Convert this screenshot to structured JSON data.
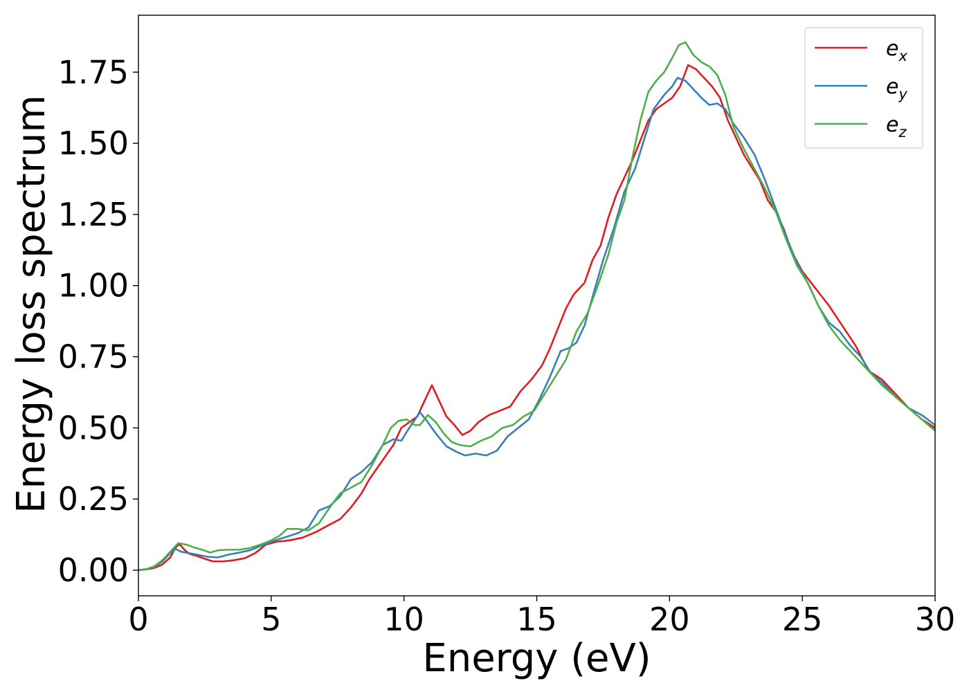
{
  "chart_data": {
    "type": "line",
    "xlabel": "Energy (eV)",
    "ylabel": "Energy loss spectrum",
    "xlim": [
      0,
      30
    ],
    "ylim": [
      -0.09,
      1.95
    ],
    "xticks": [
      0,
      5,
      10,
      15,
      20,
      25,
      30
    ],
    "xtick_labels": [
      "0",
      "5",
      "10",
      "15",
      "20",
      "25",
      "30"
    ],
    "yticks": [
      0.0,
      0.25,
      0.5,
      0.75,
      1.0,
      1.25,
      1.5,
      1.75
    ],
    "ytick_labels": [
      "0.00",
      "0.25",
      "0.50",
      "0.75",
      "1.00",
      "1.25",
      "1.50",
      "1.75"
    ],
    "grid": false,
    "legend_position": "top-right",
    "series": [
      {
        "name": "e",
        "subscript": "x",
        "color": "#e41a1c",
        "points": [
          [
            0,
            0
          ],
          [
            0.3,
            0.003
          ],
          [
            0.6,
            0.008
          ],
          [
            0.9,
            0.02
          ],
          [
            1.2,
            0.045
          ],
          [
            1.4,
            0.08
          ],
          [
            1.55,
            0.092
          ],
          [
            1.7,
            0.075
          ],
          [
            1.9,
            0.058
          ],
          [
            2.2,
            0.05
          ],
          [
            2.5,
            0.04
          ],
          [
            2.8,
            0.031
          ],
          [
            3.2,
            0.031
          ],
          [
            3.6,
            0.035
          ],
          [
            4.0,
            0.042
          ],
          [
            4.4,
            0.06
          ],
          [
            4.8,
            0.09
          ],
          [
            5.2,
            0.1
          ],
          [
            5.7,
            0.105
          ],
          [
            6.2,
            0.115
          ],
          [
            6.7,
            0.135
          ],
          [
            7.2,
            0.16
          ],
          [
            7.6,
            0.18
          ],
          [
            8.0,
            0.22
          ],
          [
            8.4,
            0.27
          ],
          [
            8.7,
            0.32
          ],
          [
            9.0,
            0.36
          ],
          [
            9.3,
            0.4
          ],
          [
            9.6,
            0.44
          ],
          [
            9.9,
            0.5
          ],
          [
            10.2,
            0.52
          ],
          [
            10.5,
            0.54
          ],
          [
            10.8,
            0.6
          ],
          [
            11.05,
            0.65
          ],
          [
            11.3,
            0.6
          ],
          [
            11.6,
            0.54
          ],
          [
            11.9,
            0.51
          ],
          [
            12.2,
            0.475
          ],
          [
            12.5,
            0.49
          ],
          [
            12.8,
            0.52
          ],
          [
            13.2,
            0.545
          ],
          [
            13.6,
            0.56
          ],
          [
            14.0,
            0.575
          ],
          [
            14.4,
            0.63
          ],
          [
            14.8,
            0.67
          ],
          [
            15.2,
            0.72
          ],
          [
            15.5,
            0.78
          ],
          [
            15.8,
            0.85
          ],
          [
            16.1,
            0.92
          ],
          [
            16.4,
            0.97
          ],
          [
            16.8,
            1.01
          ],
          [
            17.1,
            1.09
          ],
          [
            17.4,
            1.14
          ],
          [
            17.7,
            1.24
          ],
          [
            18.0,
            1.32
          ],
          [
            18.3,
            1.38
          ],
          [
            18.6,
            1.44
          ],
          [
            18.9,
            1.51
          ],
          [
            19.2,
            1.58
          ],
          [
            19.5,
            1.62
          ],
          [
            19.8,
            1.64
          ],
          [
            20.1,
            1.66
          ],
          [
            20.4,
            1.7
          ],
          [
            20.7,
            1.775
          ],
          [
            21.0,
            1.76
          ],
          [
            21.3,
            1.73
          ],
          [
            21.6,
            1.7
          ],
          [
            21.9,
            1.66
          ],
          [
            22.2,
            1.58
          ],
          [
            22.5,
            1.52
          ],
          [
            22.8,
            1.46
          ],
          [
            23.1,
            1.415
          ],
          [
            23.4,
            1.37
          ],
          [
            23.7,
            1.3
          ],
          [
            24.0,
            1.26
          ],
          [
            24.3,
            1.2
          ],
          [
            24.6,
            1.12
          ],
          [
            25.0,
            1.05
          ],
          [
            25.5,
            0.99
          ],
          [
            26.0,
            0.93
          ],
          [
            26.5,
            0.86
          ],
          [
            27.0,
            0.79
          ],
          [
            27.5,
            0.7
          ],
          [
            28.0,
            0.67
          ],
          [
            28.5,
            0.62
          ],
          [
            29.0,
            0.57
          ],
          [
            29.5,
            0.53
          ],
          [
            30.0,
            0.5
          ]
        ]
      },
      {
        "name": "e",
        "subscript": "y",
        "color": "#377eb8",
        "points": [
          [
            0,
            0
          ],
          [
            0.3,
            0.003
          ],
          [
            0.6,
            0.012
          ],
          [
            0.9,
            0.03
          ],
          [
            1.2,
            0.06
          ],
          [
            1.4,
            0.075
          ],
          [
            1.6,
            0.065
          ],
          [
            1.9,
            0.06
          ],
          [
            2.2,
            0.055
          ],
          [
            2.6,
            0.047
          ],
          [
            3.0,
            0.045
          ],
          [
            3.4,
            0.055
          ],
          [
            3.8,
            0.062
          ],
          [
            4.2,
            0.07
          ],
          [
            4.6,
            0.085
          ],
          [
            5.0,
            0.1
          ],
          [
            5.5,
            0.115
          ],
          [
            6.0,
            0.13
          ],
          [
            6.4,
            0.15
          ],
          [
            6.8,
            0.21
          ],
          [
            7.2,
            0.225
          ],
          [
            7.6,
            0.26
          ],
          [
            8.0,
            0.32
          ],
          [
            8.4,
            0.345
          ],
          [
            8.8,
            0.38
          ],
          [
            9.2,
            0.44
          ],
          [
            9.6,
            0.46
          ],
          [
            9.9,
            0.455
          ],
          [
            10.2,
            0.5
          ],
          [
            10.6,
            0.555
          ],
          [
            10.9,
            0.52
          ],
          [
            11.2,
            0.48
          ],
          [
            11.6,
            0.435
          ],
          [
            12.0,
            0.415
          ],
          [
            12.3,
            0.403
          ],
          [
            12.7,
            0.41
          ],
          [
            13.1,
            0.403
          ],
          [
            13.5,
            0.42
          ],
          [
            13.9,
            0.47
          ],
          [
            14.3,
            0.5
          ],
          [
            14.7,
            0.53
          ],
          [
            15.1,
            0.6
          ],
          [
            15.5,
            0.68
          ],
          [
            15.9,
            0.77
          ],
          [
            16.2,
            0.78
          ],
          [
            16.5,
            0.8
          ],
          [
            16.8,
            0.86
          ],
          [
            17.1,
            0.96
          ],
          [
            17.5,
            1.09
          ],
          [
            17.9,
            1.2
          ],
          [
            18.3,
            1.33
          ],
          [
            18.7,
            1.41
          ],
          [
            19.0,
            1.5
          ],
          [
            19.4,
            1.62
          ],
          [
            19.8,
            1.67
          ],
          [
            20.1,
            1.7
          ],
          [
            20.3,
            1.73
          ],
          [
            20.6,
            1.72
          ],
          [
            20.9,
            1.69
          ],
          [
            21.2,
            1.66
          ],
          [
            21.5,
            1.635
          ],
          [
            21.8,
            1.64
          ],
          [
            22.1,
            1.62
          ],
          [
            22.4,
            1.57
          ],
          [
            22.8,
            1.52
          ],
          [
            23.2,
            1.46
          ],
          [
            23.6,
            1.37
          ],
          [
            24.0,
            1.27
          ],
          [
            24.4,
            1.17
          ],
          [
            24.8,
            1.08
          ],
          [
            25.2,
            1.01
          ],
          [
            25.6,
            0.93
          ],
          [
            26.0,
            0.87
          ],
          [
            26.4,
            0.84
          ],
          [
            26.8,
            0.79
          ],
          [
            27.2,
            0.75
          ],
          [
            27.6,
            0.69
          ],
          [
            28.0,
            0.66
          ],
          [
            28.5,
            0.61
          ],
          [
            29.0,
            0.57
          ],
          [
            29.5,
            0.545
          ],
          [
            30.0,
            0.51
          ]
        ]
      },
      {
        "name": "e",
        "subscript": "z",
        "color": "#4daf4a",
        "points": [
          [
            0,
            0
          ],
          [
            0.3,
            0.004
          ],
          [
            0.6,
            0.014
          ],
          [
            0.9,
            0.035
          ],
          [
            1.2,
            0.065
          ],
          [
            1.5,
            0.095
          ],
          [
            1.8,
            0.09
          ],
          [
            2.1,
            0.08
          ],
          [
            2.4,
            0.072
          ],
          [
            2.7,
            0.062
          ],
          [
            3.0,
            0.07
          ],
          [
            3.4,
            0.072
          ],
          [
            3.8,
            0.072
          ],
          [
            4.2,
            0.078
          ],
          [
            4.6,
            0.09
          ],
          [
            5.0,
            0.105
          ],
          [
            5.3,
            0.12
          ],
          [
            5.6,
            0.145
          ],
          [
            6.0,
            0.145
          ],
          [
            6.4,
            0.14
          ],
          [
            6.8,
            0.165
          ],
          [
            7.2,
            0.22
          ],
          [
            7.6,
            0.27
          ],
          [
            8.0,
            0.29
          ],
          [
            8.4,
            0.31
          ],
          [
            8.8,
            0.37
          ],
          [
            9.2,
            0.44
          ],
          [
            9.5,
            0.5
          ],
          [
            9.8,
            0.525
          ],
          [
            10.1,
            0.53
          ],
          [
            10.4,
            0.51
          ],
          [
            10.6,
            0.51
          ],
          [
            10.9,
            0.545
          ],
          [
            11.2,
            0.52
          ],
          [
            11.5,
            0.48
          ],
          [
            11.8,
            0.45
          ],
          [
            12.1,
            0.44
          ],
          [
            12.5,
            0.435
          ],
          [
            12.9,
            0.455
          ],
          [
            13.3,
            0.47
          ],
          [
            13.7,
            0.5
          ],
          [
            14.1,
            0.51
          ],
          [
            14.5,
            0.54
          ],
          [
            14.9,
            0.56
          ],
          [
            15.3,
            0.62
          ],
          [
            15.7,
            0.68
          ],
          [
            16.1,
            0.74
          ],
          [
            16.5,
            0.84
          ],
          [
            16.9,
            0.9
          ],
          [
            17.3,
            1.0
          ],
          [
            17.7,
            1.11
          ],
          [
            18.0,
            1.22
          ],
          [
            18.3,
            1.3
          ],
          [
            18.6,
            1.45
          ],
          [
            18.9,
            1.58
          ],
          [
            19.2,
            1.68
          ],
          [
            19.5,
            1.72
          ],
          [
            19.8,
            1.75
          ],
          [
            20.1,
            1.8
          ],
          [
            20.35,
            1.845
          ],
          [
            20.6,
            1.855
          ],
          [
            20.9,
            1.81
          ],
          [
            21.2,
            1.785
          ],
          [
            21.5,
            1.77
          ],
          [
            21.8,
            1.74
          ],
          [
            22.1,
            1.67
          ],
          [
            22.4,
            1.56
          ],
          [
            22.8,
            1.48
          ],
          [
            23.2,
            1.41
          ],
          [
            23.6,
            1.34
          ],
          [
            24.0,
            1.26
          ],
          [
            24.4,
            1.16
          ],
          [
            24.8,
            1.07
          ],
          [
            25.2,
            1.01
          ],
          [
            25.6,
            0.93
          ],
          [
            26.0,
            0.86
          ],
          [
            26.4,
            0.81
          ],
          [
            26.8,
            0.77
          ],
          [
            27.2,
            0.73
          ],
          [
            27.6,
            0.69
          ],
          [
            28.0,
            0.65
          ],
          [
            28.5,
            0.61
          ],
          [
            29.0,
            0.57
          ],
          [
            29.5,
            0.53
          ],
          [
            30.0,
            0.49
          ]
        ]
      }
    ]
  }
}
